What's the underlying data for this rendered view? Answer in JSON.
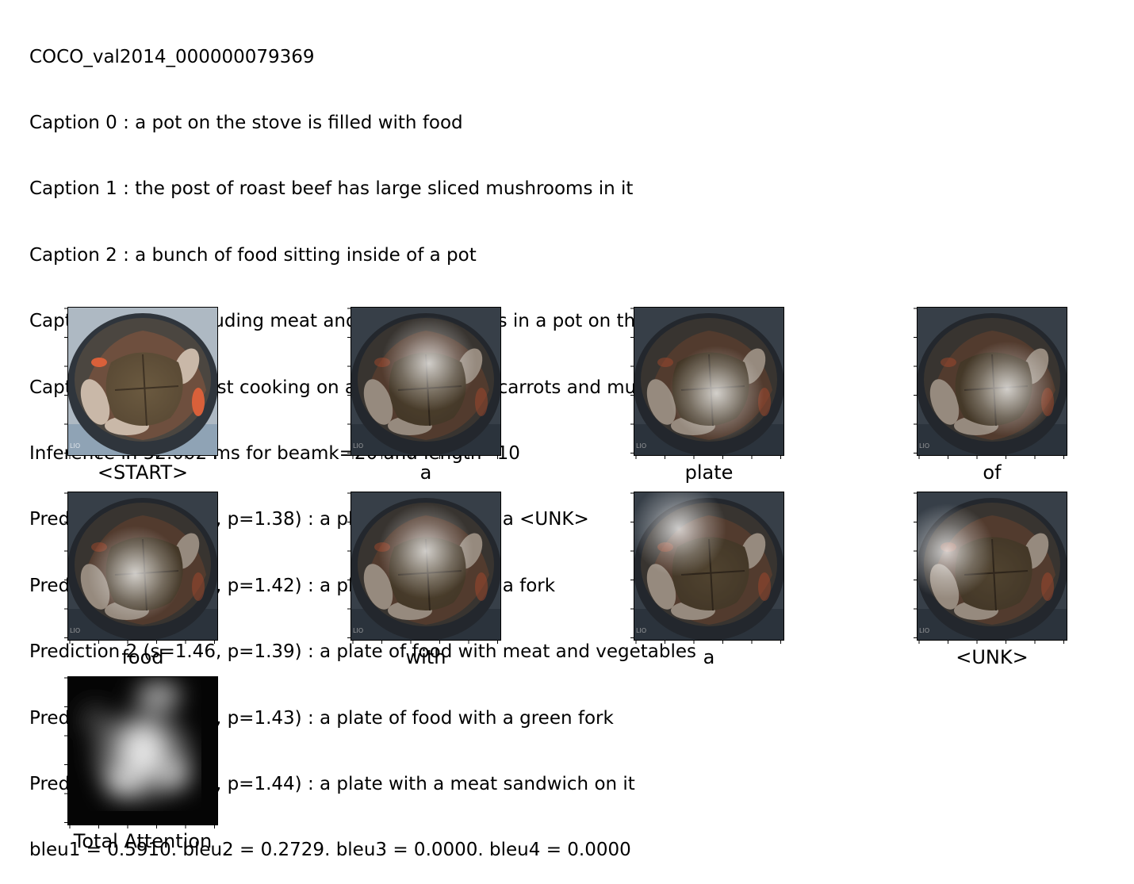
{
  "header": {
    "lines": [
      "COCO_val2014_000000079369",
      "Caption 0 : a pot on the stove is filled with food",
      "Caption 1 : the post of roast beef has large sliced mushrooms in it",
      "Caption 2 : a bunch of food sitting inside of a pot",
      "Caption 3 : food including meat and mushrooms sits in a pot on the stove",
      "Caption 4 : a pot roast cooking on a stove top with carrots and mushrooms",
      "Inference in 52.002 ms for beamk=20 and length=10",
      "Prediction 0 (s=1.88, p=1.38) : a plate of food with a <UNK>",
      "Prediction 1 (s=1.68, p=1.42) : a plate of food with a fork",
      "Prediction 2 (s=1.46, p=1.39) : a plate of food with meat and vegetables",
      "Prediction 3 (s=1.20, p=1.43) : a plate of food with a green fork",
      "Prediction 4 (s=1.16, p=1.44) : a plate with a meat sandwich on it",
      "bleu1 = 0.5910. bleu2 = 0.2729. bleu3 = 0.0000. bleu4 = 0.0000"
    ]
  },
  "tiles": [
    {
      "label": "<START>",
      "kind": "original"
    },
    {
      "label": "a",
      "kind": "attention",
      "focus": [
        0.52,
        0.38
      ]
    },
    {
      "label": "plate",
      "kind": "attention",
      "focus": [
        0.55,
        0.58
      ]
    },
    {
      "label": "of",
      "kind": "attention",
      "focus": [
        0.6,
        0.55
      ]
    },
    {
      "label": "food",
      "kind": "attention",
      "focus": [
        0.45,
        0.55
      ]
    },
    {
      "label": "with",
      "kind": "attention",
      "focus": [
        0.5,
        0.4
      ]
    },
    {
      "label": "a",
      "kind": "attention",
      "focus": [
        0.3,
        0.25
      ]
    },
    {
      "label": "<UNK>",
      "kind": "attention",
      "focus": [
        0.2,
        0.4
      ]
    },
    {
      "label": "Total Attention",
      "kind": "heatmap"
    }
  ],
  "colors": {
    "text": "#000000",
    "pot_dark": "#2f353c",
    "meat": "#5a4a35",
    "carrot": "#d9603a",
    "mushroom": "#c9b8a8"
  }
}
